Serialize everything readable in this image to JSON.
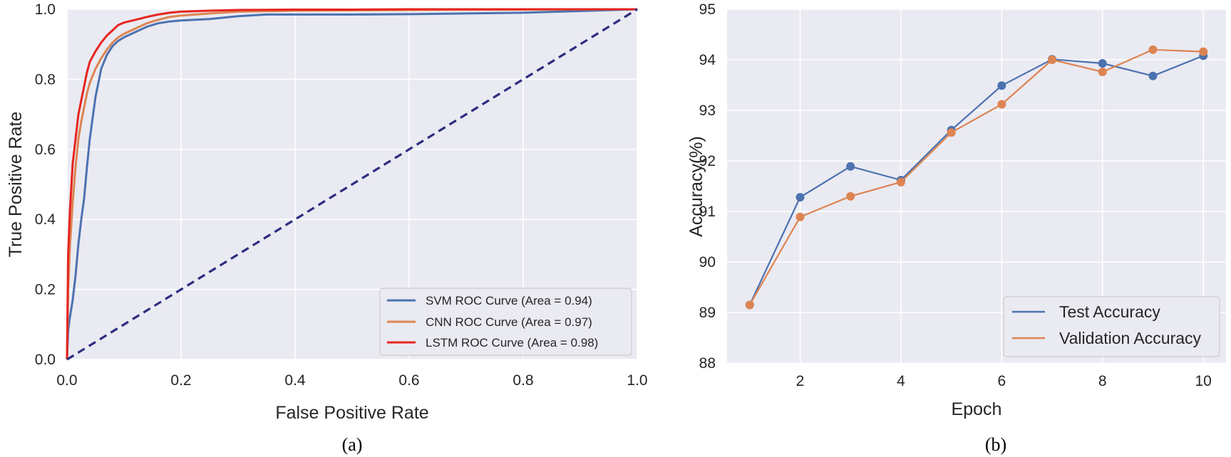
{
  "chart_data": [
    {
      "type": "line",
      "caption": "(a)",
      "xlabel": "False Positive Rate",
      "ylabel": "True Positive Rate",
      "xlim": [
        0.0,
        1.0
      ],
      "ylim": [
        0.0,
        1.0
      ],
      "xticks": [
        "0.0",
        "0.2",
        "0.4",
        "0.6",
        "0.8",
        "1.0"
      ],
      "yticks": [
        "0.0",
        "0.2",
        "0.4",
        "0.6",
        "0.8",
        "1.0"
      ],
      "grid": true,
      "legend_position": "lower-right",
      "series": [
        {
          "name": "SVM ROC Curve (Area = 0.94)",
          "color": "#4c72b0",
          "x": [
            0,
            0.002,
            0.005,
            0.01,
            0.015,
            0.02,
            0.025,
            0.03,
            0.035,
            0.04,
            0.045,
            0.05,
            0.055,
            0.06,
            0.07,
            0.08,
            0.09,
            0.1,
            0.12,
            0.14,
            0.16,
            0.18,
            0.2,
            0.25,
            0.3,
            0.35,
            0.4,
            0.5,
            0.6,
            0.7,
            0.8,
            0.9,
            1.0
          ],
          "y": [
            0,
            0.08,
            0.12,
            0.17,
            0.24,
            0.33,
            0.4,
            0.46,
            0.55,
            0.63,
            0.69,
            0.75,
            0.79,
            0.83,
            0.87,
            0.895,
            0.91,
            0.92,
            0.935,
            0.95,
            0.96,
            0.965,
            0.968,
            0.972,
            0.98,
            0.985,
            0.985,
            0.985,
            0.986,
            0.988,
            0.99,
            0.995,
            1.0
          ]
        },
        {
          "name": "CNN ROC Curve (Area = 0.97)",
          "color": "#dd8452",
          "x": [
            0,
            0.002,
            0.005,
            0.01,
            0.015,
            0.02,
            0.025,
            0.03,
            0.035,
            0.04,
            0.05,
            0.06,
            0.07,
            0.08,
            0.09,
            0.1,
            0.12,
            0.14,
            0.16,
            0.18,
            0.2,
            0.25,
            0.3,
            0.4,
            0.5,
            0.6,
            0.8,
            1.0
          ],
          "y": [
            0,
            0.2,
            0.32,
            0.45,
            0.55,
            0.63,
            0.68,
            0.72,
            0.76,
            0.79,
            0.83,
            0.86,
            0.885,
            0.905,
            0.92,
            0.93,
            0.945,
            0.96,
            0.97,
            0.978,
            0.982,
            0.988,
            0.993,
            0.996,
            0.997,
            0.998,
            0.999,
            1.0
          ]
        },
        {
          "name": "LSTM ROC Curve (Area = 0.98)",
          "color": "#e6241e",
          "x": [
            0,
            0.002,
            0.005,
            0.01,
            0.015,
            0.02,
            0.025,
            0.03,
            0.035,
            0.04,
            0.05,
            0.06,
            0.07,
            0.08,
            0.09,
            0.1,
            0.12,
            0.14,
            0.16,
            0.18,
            0.2,
            0.25,
            0.3,
            0.4,
            0.5,
            0.6,
            0.8,
            1.0
          ],
          "y": [
            0,
            0.3,
            0.42,
            0.56,
            0.63,
            0.7,
            0.74,
            0.78,
            0.82,
            0.85,
            0.88,
            0.905,
            0.925,
            0.94,
            0.955,
            0.962,
            0.97,
            0.978,
            0.985,
            0.99,
            0.993,
            0.996,
            0.998,
            0.999,
            0.999,
            1.0,
            1.0,
            1.0
          ]
        },
        {
          "name": "",
          "color": "#2c2d80",
          "style": "dashed",
          "x": [
            0,
            1
          ],
          "y": [
            0,
            1
          ]
        }
      ]
    },
    {
      "type": "line",
      "caption": "(b)",
      "xlabel": "Epoch",
      "ylabel": "Accuracy(%)",
      "xlim": [
        0.55,
        10.45
      ],
      "ylim": [
        88,
        95
      ],
      "xticks": [
        "2",
        "4",
        "6",
        "8",
        "10"
      ],
      "yticks": [
        "88",
        "89",
        "90",
        "91",
        "92",
        "93",
        "94",
        "95"
      ],
      "grid": true,
      "legend_position": "lower-right",
      "x": [
        1,
        2,
        3,
        4,
        5,
        6,
        7,
        8,
        9,
        10
      ],
      "series": [
        {
          "name": "Test Accuracy",
          "color": "#4c72b0",
          "values": [
            89.15,
            91.28,
            91.89,
            91.62,
            92.61,
            93.49,
            94.01,
            93.93,
            93.68,
            94.08
          ]
        },
        {
          "name": "Validation Accuracy",
          "color": "#dd8452",
          "values": [
            89.15,
            90.89,
            91.3,
            91.58,
            92.56,
            93.12,
            94.0,
            93.76,
            94.2,
            94.16
          ]
        }
      ]
    }
  ]
}
